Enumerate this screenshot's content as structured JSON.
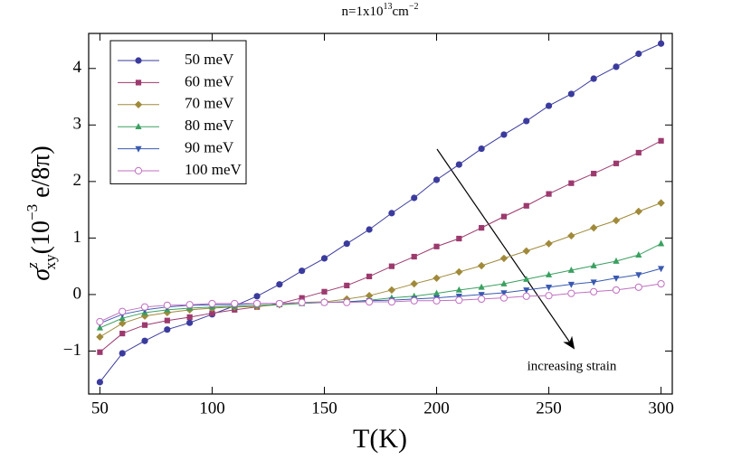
{
  "chart_data": {
    "type": "line",
    "title": {
      "text": "n=1x10",
      "sup1": "13",
      "unit": "cm",
      "sup2": "−2"
    },
    "xlabel": "T(K)",
    "ylabel": {
      "symbol": "σ",
      "sup": "z",
      "sub": "xy",
      "open": "(10",
      "exp": "−3",
      "unit": " e/8π)"
    },
    "annotation": "increasing strain",
    "x": [
      50,
      60,
      70,
      80,
      90,
      100,
      110,
      120,
      130,
      140,
      150,
      160,
      170,
      180,
      190,
      200,
      210,
      220,
      230,
      240,
      250,
      260,
      270,
      280,
      290,
      300
    ],
    "xlim": [
      45,
      305
    ],
    "xticks": [
      50,
      100,
      150,
      200,
      250,
      300
    ],
    "ylim": [
      -1.76,
      4.62
    ],
    "yticks": [
      {
        "value": -1,
        "label": "−1"
      },
      0,
      1,
      2,
      3,
      4
    ],
    "legend": "upper-left",
    "series": [
      {
        "name": "50 meV",
        "color": "#3b3b9e",
        "marker": "circle",
        "values": [
          -1.55,
          -1.04,
          -0.82,
          -0.62,
          -0.5,
          -0.35,
          -0.2,
          -0.03,
          0.18,
          0.42,
          0.64,
          0.9,
          1.15,
          1.44,
          1.71,
          2.03,
          2.3,
          2.58,
          2.83,
          3.07,
          3.34,
          3.55,
          3.82,
          4.03,
          4.26,
          4.44
        ]
      },
      {
        "name": "60 meV",
        "color": "#9c3a6e",
        "marker": "square",
        "values": [
          -1.02,
          -0.69,
          -0.54,
          -0.46,
          -0.4,
          -0.33,
          -0.27,
          -0.22,
          -0.16,
          -0.06,
          0.05,
          0.16,
          0.32,
          0.5,
          0.67,
          0.85,
          0.99,
          1.18,
          1.38,
          1.57,
          1.78,
          1.97,
          2.14,
          2.32,
          2.51,
          2.72
        ]
      },
      {
        "name": "70 meV",
        "color": "#a08a3a",
        "marker": "diamond",
        "values": [
          -0.75,
          -0.51,
          -0.38,
          -0.32,
          -0.27,
          -0.24,
          -0.22,
          -0.21,
          -0.18,
          -0.14,
          -0.13,
          -0.08,
          -0.02,
          0.08,
          0.19,
          0.29,
          0.4,
          0.51,
          0.64,
          0.77,
          0.9,
          1.04,
          1.18,
          1.31,
          1.47,
          1.62
        ]
      },
      {
        "name": "80 meV",
        "color": "#3aa060",
        "marker": "triangle-up",
        "values": [
          -0.59,
          -0.42,
          -0.32,
          -0.27,
          -0.24,
          -0.22,
          -0.21,
          -0.19,
          -0.18,
          -0.16,
          -0.14,
          -0.13,
          -0.1,
          -0.06,
          -0.03,
          0.02,
          0.08,
          0.13,
          0.19,
          0.27,
          0.35,
          0.43,
          0.51,
          0.59,
          0.7,
          0.9
        ]
      },
      {
        "name": "90 meV",
        "color": "#3a5ab0",
        "marker": "triangle-down",
        "values": [
          -0.51,
          -0.35,
          -0.27,
          -0.22,
          -0.19,
          -0.18,
          -0.18,
          -0.16,
          -0.16,
          -0.14,
          -0.14,
          -0.13,
          -0.11,
          -0.1,
          -0.08,
          -0.06,
          -0.03,
          0,
          0.03,
          0.08,
          0.13,
          0.18,
          0.22,
          0.29,
          0.35,
          0.46
        ]
      },
      {
        "name": "100 meV",
        "color": "#c070c0",
        "marker": "open-circle",
        "values": [
          -0.48,
          -0.3,
          -0.22,
          -0.19,
          -0.18,
          -0.16,
          -0.16,
          -0.16,
          -0.16,
          -0.14,
          -0.14,
          -0.14,
          -0.13,
          -0.13,
          -0.11,
          -0.11,
          -0.1,
          -0.08,
          -0.06,
          -0.03,
          -0.02,
          0.02,
          0.05,
          0.08,
          0.13,
          0.19
        ]
      }
    ]
  }
}
